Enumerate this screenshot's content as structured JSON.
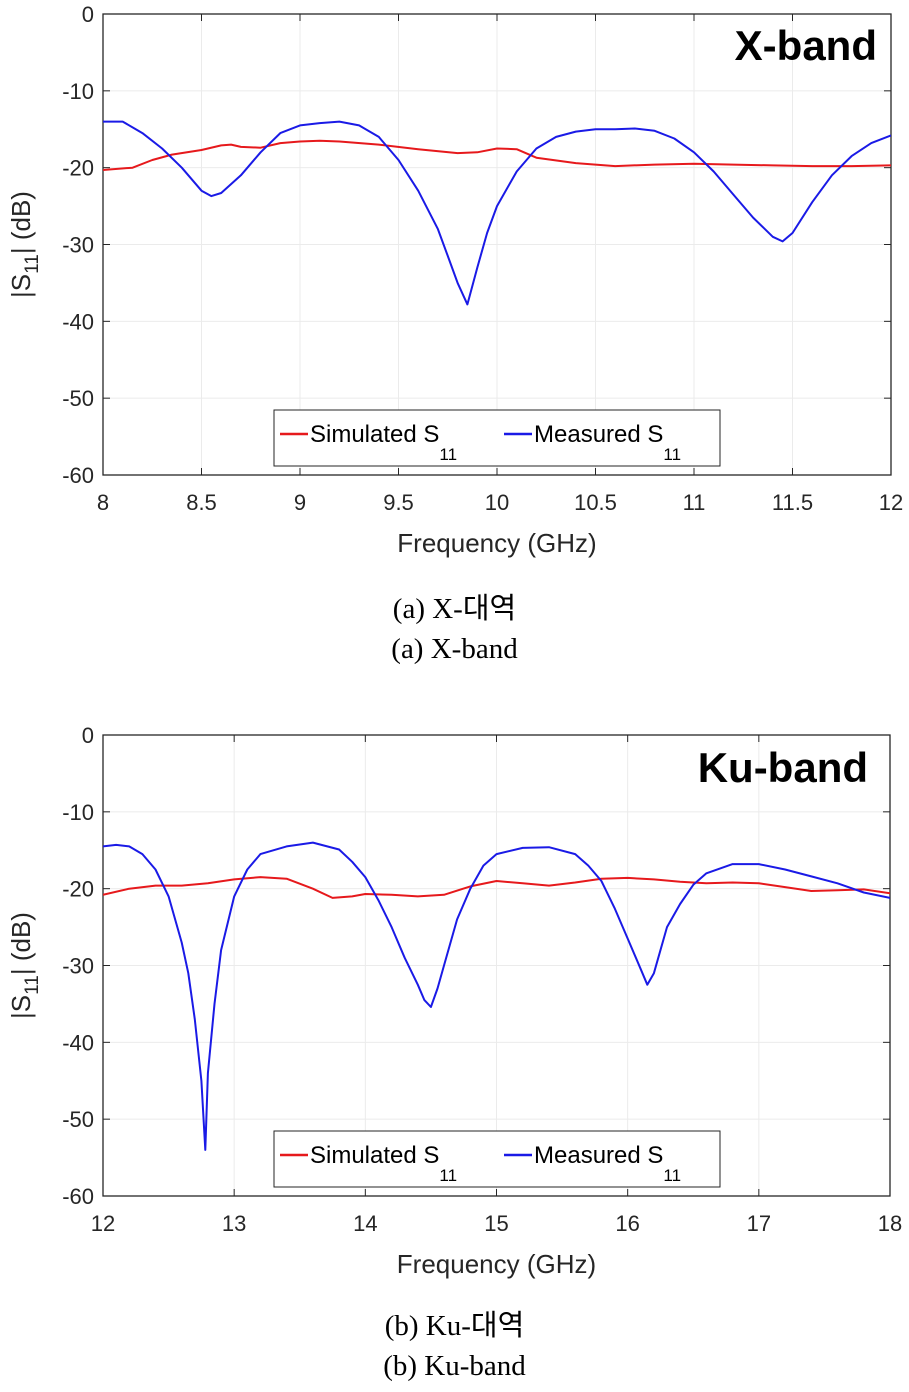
{
  "colors": {
    "simulated": "#e6191c",
    "measured": "#1a1ae6",
    "grid": "#ebebeb",
    "axis": "#262626"
  },
  "captions": {
    "a_korean": "(a)  X-대역",
    "a_english": "(a)  X-band",
    "b_korean": "(b)  Ku-대역",
    "b_english": "(b)  Ku-band"
  },
  "chart_data": [
    {
      "type": "line",
      "annotation": "X-band",
      "xlabel": "Frequency (GHz)",
      "ylabel": {
        "prefix": "|S",
        "sub": "11",
        "suffix": "| (dB)"
      },
      "xlim": [
        8,
        12
      ],
      "ylim": [
        -60,
        0
      ],
      "xticks": [
        8,
        8.5,
        9,
        9.5,
        10,
        10.5,
        11,
        11.5,
        12
      ],
      "xtick_labels": [
        "8",
        "8.5",
        "9",
        "9.5",
        "10",
        "10.5",
        "11",
        "11.5",
        "12"
      ],
      "yticks": [
        0,
        -10,
        -20,
        -30,
        -40,
        -50,
        -60
      ],
      "ytick_labels": [
        "0",
        "-10",
        "-20",
        "-30",
        "-40",
        "-50",
        "-60"
      ],
      "grid": true,
      "legend": {
        "placement": "bottom-center",
        "orientation": "horizontal"
      },
      "series": [
        {
          "name": "Simulated S11",
          "label_main": "Simulated S",
          "label_sub": "11",
          "color": "#e6191c",
          "x": [
            8.0,
            8.15,
            8.25,
            8.35,
            8.5,
            8.6,
            8.65,
            8.7,
            8.8,
            8.9,
            9.0,
            9.1,
            9.2,
            9.4,
            9.6,
            9.8,
            9.9,
            10.0,
            10.1,
            10.2,
            10.4,
            10.6,
            10.8,
            11.0,
            11.2,
            11.4,
            11.6,
            11.8,
            12.0
          ],
          "y": [
            -20.3,
            -20.0,
            -19.0,
            -18.3,
            -17.7,
            -17.1,
            -17.0,
            -17.3,
            -17.4,
            -16.8,
            -16.6,
            -16.5,
            -16.6,
            -17.0,
            -17.6,
            -18.1,
            -18.0,
            -17.5,
            -17.6,
            -18.7,
            -19.4,
            -19.8,
            -19.6,
            -19.5,
            -19.6,
            -19.7,
            -19.8,
            -19.8,
            -19.7
          ]
        },
        {
          "name": "Measured S11",
          "label_main": "Measured S",
          "label_sub": "11",
          "color": "#1a1ae6",
          "x": [
            8.0,
            8.1,
            8.2,
            8.3,
            8.4,
            8.5,
            8.55,
            8.6,
            8.7,
            8.8,
            8.9,
            9.0,
            9.1,
            9.2,
            9.3,
            9.4,
            9.5,
            9.6,
            9.7,
            9.75,
            9.8,
            9.85,
            9.9,
            9.95,
            10.0,
            10.1,
            10.2,
            10.3,
            10.4,
            10.5,
            10.6,
            10.7,
            10.8,
            10.9,
            11.0,
            11.1,
            11.2,
            11.3,
            11.4,
            11.45,
            11.5,
            11.6,
            11.7,
            11.8,
            11.9,
            12.0
          ],
          "y": [
            -14.0,
            -14.0,
            -15.5,
            -17.5,
            -20.0,
            -23.0,
            -23.7,
            -23.3,
            -21.0,
            -18.0,
            -15.5,
            -14.5,
            -14.2,
            -14.0,
            -14.5,
            -16.0,
            -19.0,
            -23.0,
            -28.0,
            -31.5,
            -35.0,
            -37.8,
            -33.0,
            -28.5,
            -25.0,
            -20.5,
            -17.5,
            -16.0,
            -15.3,
            -15.0,
            -15.0,
            -14.9,
            -15.2,
            -16.2,
            -18.0,
            -20.5,
            -23.5,
            -26.5,
            -29.0,
            -29.6,
            -28.5,
            -24.5,
            -21.0,
            -18.5,
            -16.8,
            -15.8
          ]
        }
      ]
    },
    {
      "type": "line",
      "annotation": "Ku-band",
      "xlabel": "Frequency (GHz)",
      "ylabel": {
        "prefix": "|S",
        "sub": "11",
        "suffix": "| (dB)"
      },
      "xlim": [
        12,
        18
      ],
      "ylim": [
        -60,
        0
      ],
      "xticks": [
        12,
        13,
        14,
        15,
        16,
        17,
        18
      ],
      "xtick_labels": [
        "12",
        "13",
        "14",
        "15",
        "16",
        "17",
        "18"
      ],
      "yticks": [
        0,
        -10,
        -20,
        -30,
        -40,
        -50,
        -60
      ],
      "ytick_labels": [
        "0",
        "-10",
        "-20",
        "-30",
        "-40",
        "-50",
        "-60"
      ],
      "grid": true,
      "legend": {
        "placement": "bottom-center",
        "orientation": "horizontal"
      },
      "series": [
        {
          "name": "Simulated S11",
          "label_main": "Simulated S",
          "label_sub": "11",
          "color": "#e6191c",
          "x": [
            12.0,
            12.2,
            12.4,
            12.6,
            12.8,
            13.0,
            13.2,
            13.4,
            13.6,
            13.75,
            13.9,
            14.0,
            14.2,
            14.4,
            14.6,
            14.8,
            15.0,
            15.2,
            15.4,
            15.6,
            15.8,
            16.0,
            16.2,
            16.4,
            16.6,
            16.8,
            17.0,
            17.2,
            17.4,
            17.6,
            17.8,
            18.0
          ],
          "y": [
            -20.8,
            -20.0,
            -19.6,
            -19.6,
            -19.3,
            -18.8,
            -18.5,
            -18.7,
            -20.0,
            -21.2,
            -21.0,
            -20.7,
            -20.8,
            -21.0,
            -20.8,
            -19.7,
            -19.0,
            -19.3,
            -19.6,
            -19.2,
            -18.7,
            -18.6,
            -18.8,
            -19.1,
            -19.3,
            -19.2,
            -19.3,
            -19.8,
            -20.3,
            -20.2,
            -20.1,
            -20.6
          ]
        },
        {
          "name": "Measured S11",
          "label_main": "Measured S",
          "label_sub": "11",
          "color": "#1a1ae6",
          "x": [
            12.0,
            12.1,
            12.2,
            12.3,
            12.4,
            12.5,
            12.6,
            12.65,
            12.7,
            12.75,
            12.78,
            12.8,
            12.85,
            12.9,
            13.0,
            13.1,
            13.2,
            13.4,
            13.6,
            13.8,
            13.9,
            14.0,
            14.1,
            14.2,
            14.3,
            14.4,
            14.45,
            14.5,
            14.55,
            14.6,
            14.7,
            14.8,
            14.9,
            15.0,
            15.2,
            15.4,
            15.6,
            15.7,
            15.8,
            15.9,
            16.0,
            16.1,
            16.15,
            16.2,
            16.3,
            16.4,
            16.5,
            16.6,
            16.8,
            17.0,
            17.2,
            17.4,
            17.6,
            17.8,
            18.0
          ],
          "y": [
            -14.5,
            -14.3,
            -14.5,
            -15.5,
            -17.5,
            -21.0,
            -27.0,
            -31.0,
            -37.0,
            -45.0,
            -54.0,
            -44.0,
            -35.0,
            -28.0,
            -21.0,
            -17.5,
            -15.5,
            -14.5,
            -14.0,
            -14.9,
            -16.5,
            -18.5,
            -21.5,
            -25.0,
            -29.0,
            -32.5,
            -34.5,
            -35.4,
            -33.0,
            -30.0,
            -24.0,
            -20.0,
            -17.0,
            -15.5,
            -14.7,
            -14.6,
            -15.5,
            -17.0,
            -19.0,
            -22.5,
            -26.5,
            -30.5,
            -32.5,
            -31.0,
            -25.0,
            -22.0,
            -19.5,
            -18.0,
            -16.8,
            -16.8,
            -17.5,
            -18.4,
            -19.3,
            -20.5,
            -21.2
          ]
        }
      ]
    }
  ]
}
